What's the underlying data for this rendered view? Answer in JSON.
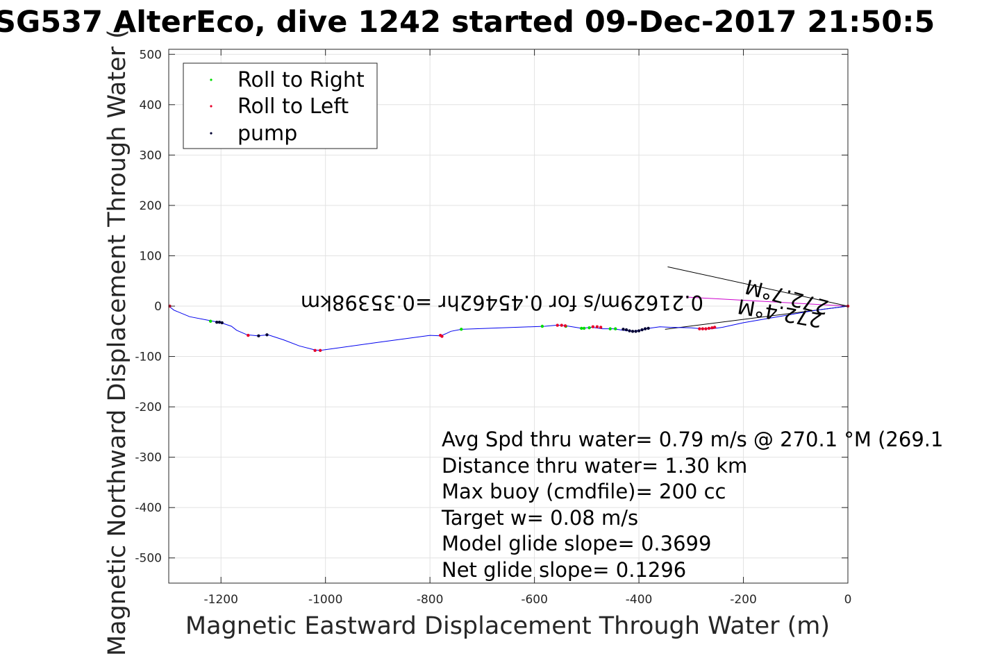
{
  "chart_data": {
    "type": "scatter",
    "title": "SG537 AlterEco, dive 1242 started 09-Dec-2017 21:50:5",
    "xlabel": "Magnetic Eastward Displacement Through Water (m)",
    "ylabel": "Magnetic Northward Displacement Through Water (",
    "xlim": [
      -1300,
      0
    ],
    "ylim": [
      -550,
      510
    ],
    "xticks": [
      -1200,
      -1000,
      -800,
      -600,
      -400,
      -200,
      0
    ],
    "yticks": [
      500,
      400,
      300,
      200,
      100,
      0,
      -100,
      -200,
      -300,
      -400,
      -500
    ],
    "grid": true,
    "legend_position": "top-left",
    "legend": [
      {
        "label": "Roll to Right",
        "color": "#00dd00"
      },
      {
        "label": "Roll to Left",
        "color": "#e8002a"
      },
      {
        "label": "pump",
        "color": "#000033"
      }
    ],
    "track": {
      "name": "track",
      "color": "#0000ee",
      "x": [
        -1300,
        -1290,
        -1260,
        -1220,
        -1200,
        -1180,
        -1170,
        -1150,
        -1130,
        -1110,
        -1080,
        -1050,
        -1020,
        -1010,
        -900,
        -800,
        -780,
        -770,
        -760,
        -740,
        -580,
        -560,
        -550,
        -540,
        -510,
        -490,
        -470,
        -450,
        -430,
        -410,
        -380,
        -360,
        -340,
        -300,
        -280,
        -260,
        -240,
        -200,
        -150,
        -100,
        -60,
        -30,
        0
      ],
      "y": [
        0,
        -8,
        -21,
        -29,
        -33,
        -40,
        -48,
        -57,
        -59,
        -57,
        -67,
        -79,
        -87,
        -88,
        -72,
        -58,
        -59,
        -55,
        -50,
        -46,
        -40,
        -38,
        -38,
        -39,
        -44,
        -42,
        -45,
        -45,
        -48,
        -50,
        -44,
        -41,
        -42,
        -43,
        -45,
        -45,
        -42,
        -33,
        -24,
        -15,
        -8,
        -4,
        0
      ]
    },
    "roll_right": {
      "x": [
        -1220,
        -740,
        -585,
        -540,
        -510,
        -505,
        -495,
        -455,
        -445
      ],
      "y": [
        -30,
        -46,
        -40,
        -40,
        -44,
        -44,
        -43,
        -45,
        -45
      ]
    },
    "roll_left": {
      "x": [
        -1298,
        -1148,
        -1020,
        -1010,
        -780,
        -777,
        -556,
        -548,
        -541,
        -488,
        -480,
        -473,
        -284,
        -278,
        -272,
        -266,
        -260,
        -255,
        0
      ],
      "y": [
        0,
        -58,
        -88,
        -88,
        -58,
        -60,
        -38,
        -38,
        -39,
        -41,
        -41,
        -42,
        -45,
        -45,
        -45,
        -44,
        -43,
        -42,
        0
      ]
    },
    "pump": {
      "x": [
        -1208,
        -1203,
        -1198,
        -1128,
        -1112,
        -430,
        -424,
        -418,
        -412,
        -406,
        -400,
        -394,
        -388,
        -382
      ],
      "y": [
        -32,
        -32,
        -33,
        -59,
        -57,
        -46,
        -47,
        -49,
        -50,
        -50,
        -49,
        -47,
        -45,
        -44
      ]
    },
    "current_vectors": [
      {
        "x": [
          0,
          -345
        ],
        "y": [
          0,
          78
        ],
        "color": "#000000"
      },
      {
        "x": [
          0,
          -350
        ],
        "y": [
          0,
          -46
        ],
        "color": "#000000"
      },
      {
        "x": [
          0,
          -310
        ],
        "y": [
          0,
          18
        ],
        "color": "#cc00cc"
      }
    ],
    "flipped_annotations": [
      "0.21629m/s for 0.45462hr =0.35398km",
      "272.7°M",
      "272.4°M"
    ],
    "annotations": [
      "Avg Spd thru water=  0.79 m/s @ 270.1 °M (269.1",
      "Distance thru water=  1.30 km",
      "Max buoy (cmdfile)= 200 cc",
      "Target w= 0.08 m/s",
      "Model glide slope= 0.3699",
      "Net glide slope= 0.1296"
    ]
  }
}
